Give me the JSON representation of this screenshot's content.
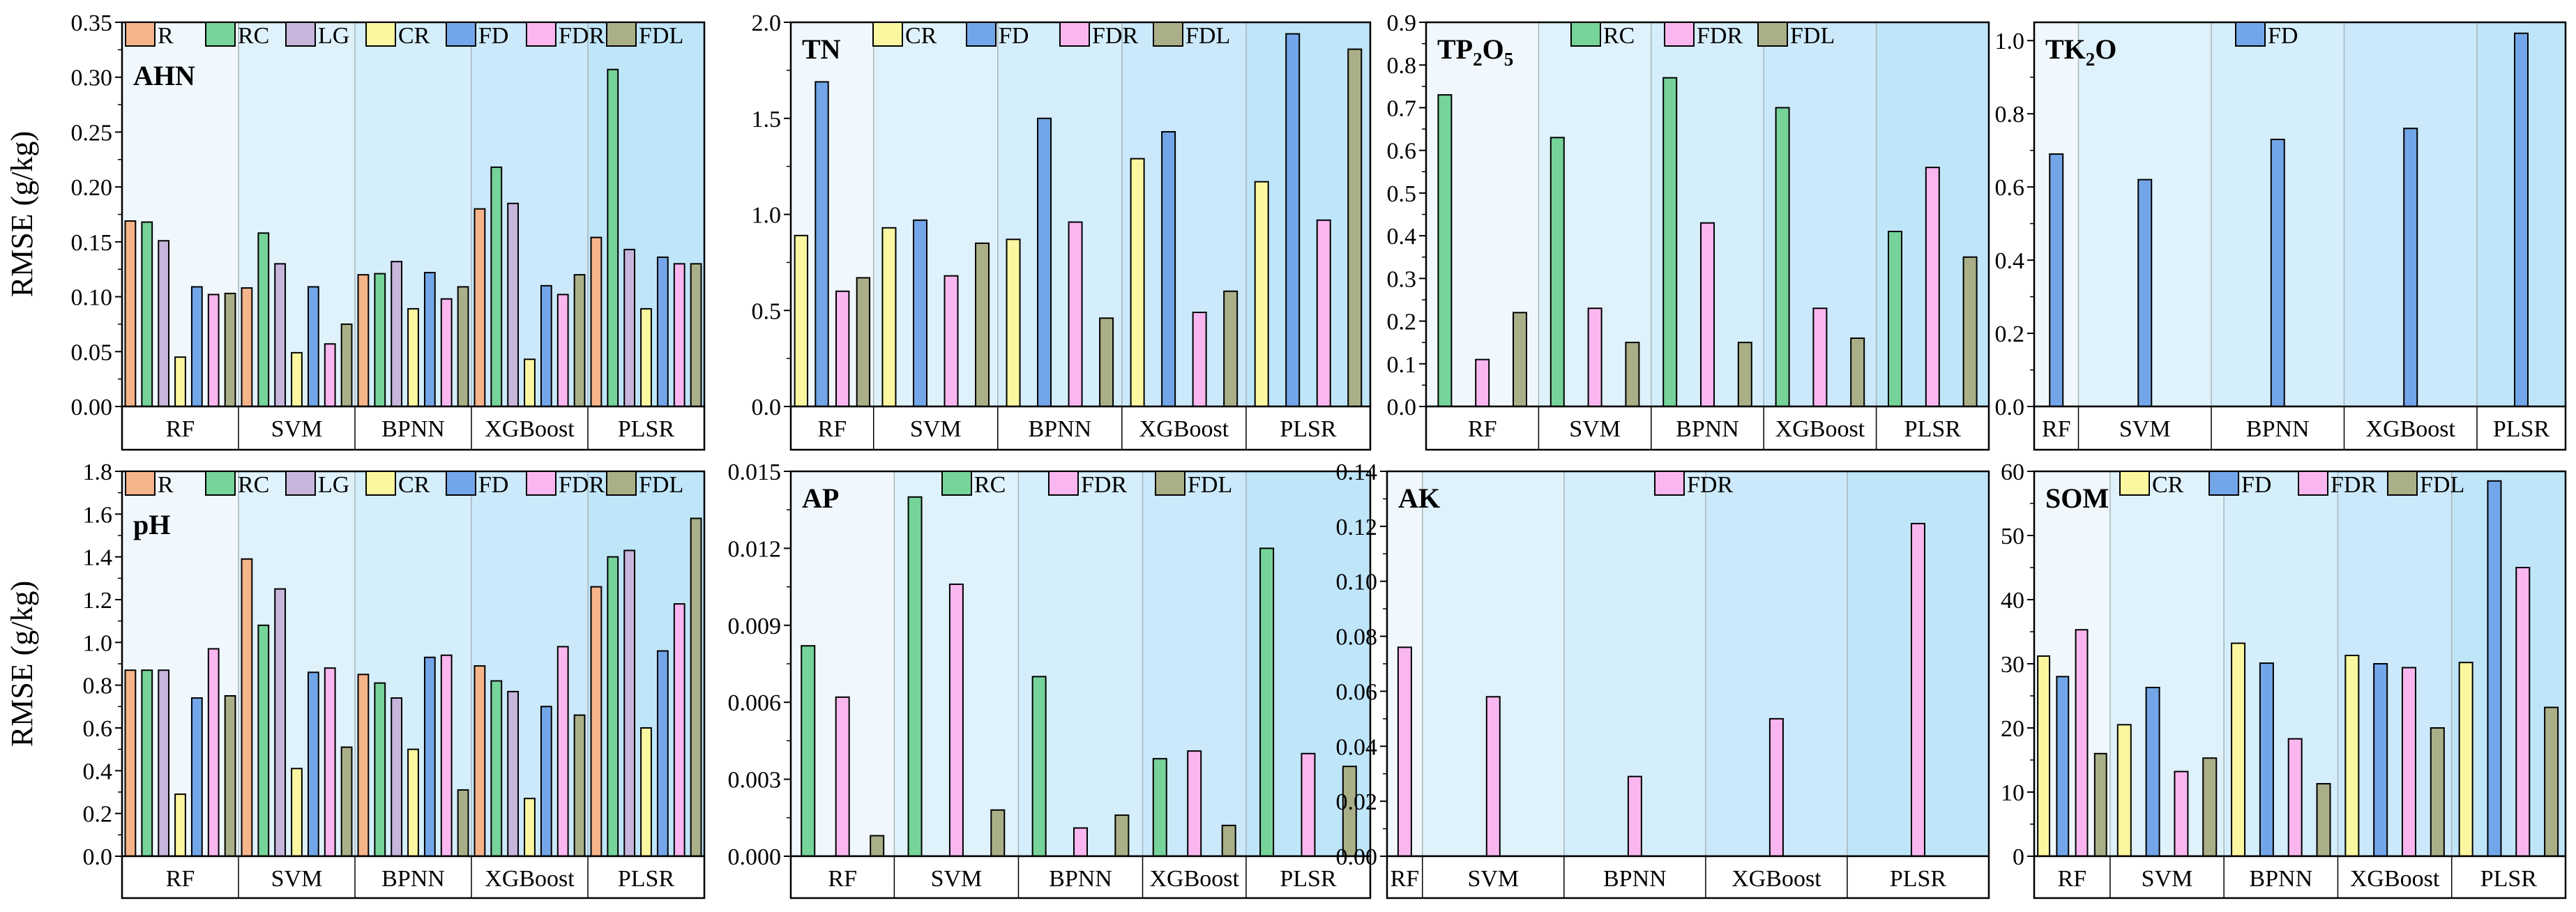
{
  "ylabel": "RMSE (g/kg)",
  "colors": {
    "R": "#f6b48a",
    "RC": "#76d39a",
    "LG": "#c7b5dc",
    "CR": "#fbf7a0",
    "FD": "#73a6e8",
    "FDR": "#f9b6ef",
    "FDL": "#aaaf88"
  },
  "bg_colors": [
    "#f1f8fd",
    "#dff2fc",
    "#d5eefb",
    "#cbe9fa",
    "#bfe5f9"
  ],
  "chart_data": [
    {
      "type": "bar",
      "title": "AHN",
      "ylim": [
        0,
        0.35
      ],
      "yticks": [
        "0.00",
        "0.05",
        "0.10",
        "0.15",
        "0.20",
        "0.25",
        "0.30",
        "0.35"
      ],
      "categories": [
        "RF",
        "SVM",
        "BPNN",
        "XGBoost",
        "PLSR"
      ],
      "category_widths": [
        70,
        70,
        70,
        70,
        70
      ],
      "series": [
        {
          "name": "R",
          "values": [
            0.169,
            0.108,
            0.12,
            0.18,
            0.154
          ]
        },
        {
          "name": "RC",
          "values": [
            0.168,
            0.158,
            0.121,
            0.218,
            0.307
          ]
        },
        {
          "name": "LG",
          "values": [
            0.151,
            0.13,
            0.132,
            0.185,
            0.143
          ]
        },
        {
          "name": "CR",
          "values": [
            0.045,
            0.049,
            0.089,
            0.043,
            0.089
          ]
        },
        {
          "name": "FD",
          "values": [
            0.109,
            0.109,
            0.122,
            0.11,
            0.136
          ]
        },
        {
          "name": "FDR",
          "values": [
            0.102,
            0.057,
            0.098,
            0.102,
            0.13
          ]
        },
        {
          "name": "FDL",
          "values": [
            0.103,
            0.075,
            0.109,
            0.12,
            0.13
          ]
        }
      ]
    },
    {
      "type": "bar",
      "title": "TN",
      "ylim": [
        0,
        2.0
      ],
      "yticks": [
        "0.0",
        "0.5",
        "1.0",
        "1.5",
        "2.0"
      ],
      "categories": [
        "RF",
        "SVM",
        "BPNN",
        "XGBoost",
        "PLSR"
      ],
      "category_widths": [
        40,
        60,
        60,
        60,
        60
      ],
      "series": [
        {
          "name": "CR",
          "values": [
            0.89,
            0.93,
            0.87,
            1.29,
            1.17
          ]
        },
        {
          "name": "FD",
          "values": [
            1.69,
            0.97,
            1.5,
            1.43,
            1.94
          ]
        },
        {
          "name": "FDR",
          "values": [
            0.6,
            0.68,
            0.96,
            0.49,
            0.97
          ]
        },
        {
          "name": "FDL",
          "values": [
            0.67,
            0.85,
            0.46,
            0.6,
            1.86
          ]
        }
      ]
    },
    {
      "type": "bar",
      "title": "TP2O5",
      "title_parts": [
        "TP",
        "2",
        "O",
        "5"
      ],
      "ylim": [
        0,
        0.9
      ],
      "yticks": [
        "0.0",
        "0.1",
        "0.2",
        "0.3",
        "0.4",
        "0.5",
        "0.6",
        "0.7",
        "0.8",
        "0.9"
      ],
      "categories": [
        "RF",
        "SVM",
        "BPNN",
        "XGBoost",
        "PLSR"
      ],
      "category_widths": [
        55,
        55,
        55,
        55,
        55
      ],
      "series": [
        {
          "name": "RC",
          "values": [
            0.73,
            0.63,
            0.77,
            0.7,
            0.41
          ]
        },
        {
          "name": "FDR",
          "values": [
            0.11,
            0.23,
            0.43,
            0.23,
            0.56
          ]
        },
        {
          "name": "FDL",
          "values": [
            0.22,
            0.15,
            0.15,
            0.16,
            0.35
          ]
        }
      ]
    },
    {
      "type": "bar",
      "title": "TK2O",
      "title_parts": [
        "TK",
        "2",
        "O"
      ],
      "ylim": [
        0,
        1.05
      ],
      "yticks": [
        "0.0",
        "0.2",
        "0.4",
        "0.6",
        "0.8",
        "1.0"
      ],
      "categories": [
        "RF",
        "SVM",
        "BPNN",
        "XGBoost",
        "PLSR"
      ],
      "category_widths": [
        20,
        60,
        60,
        60,
        40
      ],
      "series": [
        {
          "name": "FD",
          "values": [
            0.69,
            0.62,
            0.73,
            0.76,
            1.02
          ]
        }
      ]
    },
    {
      "type": "bar",
      "title": "pH",
      "ylim": [
        0,
        1.8
      ],
      "yticks": [
        "0.0",
        "0.2",
        "0.4",
        "0.6",
        "0.8",
        "1.0",
        "1.2",
        "1.4",
        "1.6",
        "1.8"
      ],
      "categories": [
        "RF",
        "SVM",
        "BPNN",
        "XGBoost",
        "PLSR"
      ],
      "category_widths": [
        70,
        70,
        70,
        70,
        70
      ],
      "series": [
        {
          "name": "R",
          "values": [
            0.87,
            1.39,
            0.85,
            0.89,
            1.26
          ]
        },
        {
          "name": "RC",
          "values": [
            0.87,
            1.08,
            0.81,
            0.82,
            1.4
          ]
        },
        {
          "name": "LG",
          "values": [
            0.87,
            1.25,
            0.74,
            0.77,
            1.43
          ]
        },
        {
          "name": "CR",
          "values": [
            0.29,
            0.41,
            0.5,
            0.27,
            0.6
          ]
        },
        {
          "name": "FD",
          "values": [
            0.74,
            0.86,
            0.93,
            0.7,
            0.96
          ]
        },
        {
          "name": "FDR",
          "values": [
            0.97,
            0.88,
            0.94,
            0.98,
            1.18
          ]
        },
        {
          "name": "FDL",
          "values": [
            0.75,
            0.51,
            0.31,
            0.66,
            1.58
          ]
        }
      ]
    },
    {
      "type": "bar",
      "title": "AP",
      "ylim": [
        0,
        0.015
      ],
      "yticks": [
        "0.000",
        "0.003",
        "0.006",
        "0.009",
        "0.012",
        "0.015"
      ],
      "categories": [
        "RF",
        "SVM",
        "BPNN",
        "XGBoost",
        "PLSR"
      ],
      "category_widths": [
        50,
        60,
        60,
        50,
        60
      ],
      "series": [
        {
          "name": "RC",
          "values": [
            0.0082,
            0.014,
            0.007,
            0.0038,
            0.012
          ]
        },
        {
          "name": "FDR",
          "values": [
            0.0062,
            0.0106,
            0.0011,
            0.0041,
            0.004
          ]
        },
        {
          "name": "FDL",
          "values": [
            0.0008,
            0.0018,
            0.0016,
            0.0012,
            0.0035
          ]
        }
      ]
    },
    {
      "type": "bar",
      "title": "AK",
      "ylim": [
        0,
        0.14
      ],
      "yticks": [
        "0.00",
        "0.02",
        "0.04",
        "0.06",
        "0.08",
        "0.10",
        "0.12",
        "0.14"
      ],
      "categories": [
        "RF",
        "SVM",
        "BPNN",
        "XGBoost",
        "PLSR"
      ],
      "category_widths": [
        20,
        80,
        80,
        80,
        80
      ],
      "series": [
        {
          "name": "FDR",
          "values": [
            0.076,
            0.058,
            0.029,
            0.05,
            0.121
          ]
        }
      ]
    },
    {
      "type": "bar",
      "title": "SOM",
      "ylim": [
        0,
        60
      ],
      "yticks": [
        "0",
        "10",
        "20",
        "30",
        "40",
        "50",
        "60"
      ],
      "categories": [
        "RF",
        "SVM",
        "BPNN",
        "XGBoost",
        "PLSR"
      ],
      "category_widths": [
        40,
        60,
        60,
        60,
        60
      ],
      "series": [
        {
          "name": "CR",
          "values": [
            31.2,
            20.5,
            33.2,
            31.3,
            30.2
          ]
        },
        {
          "name": "FD",
          "values": [
            28.0,
            26.3,
            30.1,
            30.0,
            58.5
          ]
        },
        {
          "name": "FDR",
          "values": [
            35.3,
            13.2,
            18.3,
            29.4,
            45.0
          ]
        },
        {
          "name": "FDL",
          "values": [
            16.0,
            15.3,
            11.3,
            20.0,
            23.2
          ]
        }
      ]
    }
  ]
}
